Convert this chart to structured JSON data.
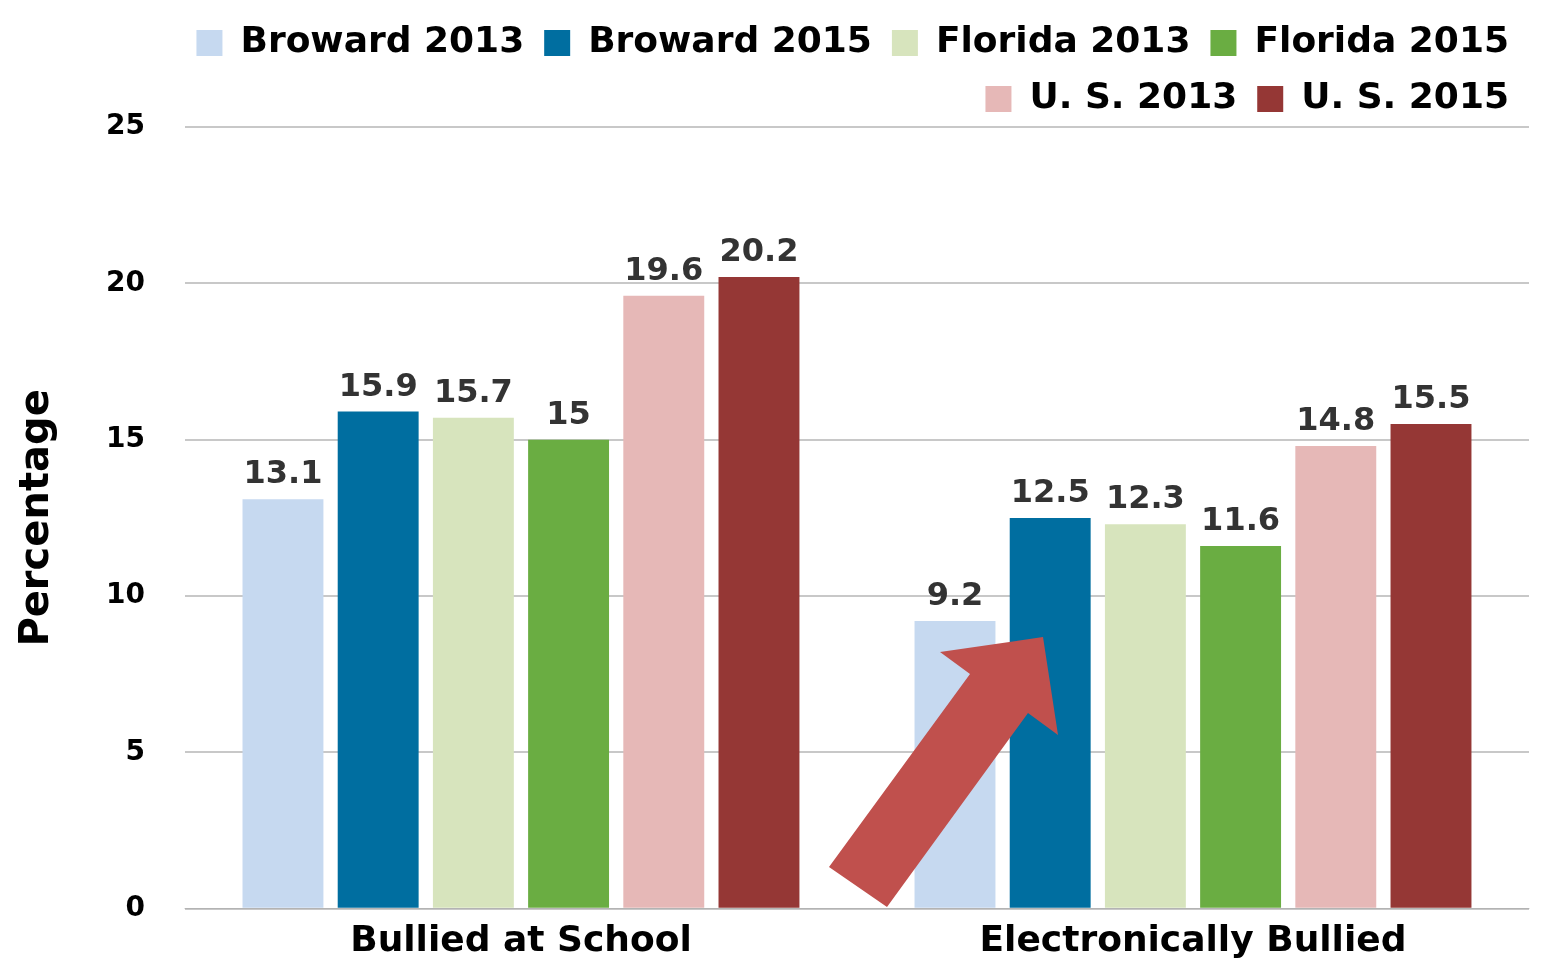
{
  "chart_data": {
    "type": "bar",
    "ylabel": "Percentage",
    "categories": [
      "Bullied at School",
      "Electronically Bullied"
    ],
    "series": [
      {
        "name": "Broward 2013",
        "color": "#c6d9f0",
        "values": [
          13.1,
          9.2
        ]
      },
      {
        "name": "Broward 2015",
        "color": "#006ea0",
        "values": [
          15.9,
          12.5
        ]
      },
      {
        "name": "Florida 2013",
        "color": "#d7e4bd",
        "values": [
          15.7,
          12.3
        ]
      },
      {
        "name": "Florida 2015",
        "color": "#6aad42",
        "values": [
          15,
          11.6
        ]
      },
      {
        "name": "U. S. 2013",
        "color": "#e6b8b7",
        "values": [
          19.6,
          14.8
        ]
      },
      {
        "name": "U. S. 2015",
        "color": "#953735",
        "values": [
          20.2,
          15.5
        ]
      }
    ],
    "ylim": [
      0,
      25
    ],
    "yticks": [
      0,
      5,
      10,
      15,
      20,
      25
    ],
    "grid": "y",
    "legend": "top right",
    "data_labels": true
  }
}
